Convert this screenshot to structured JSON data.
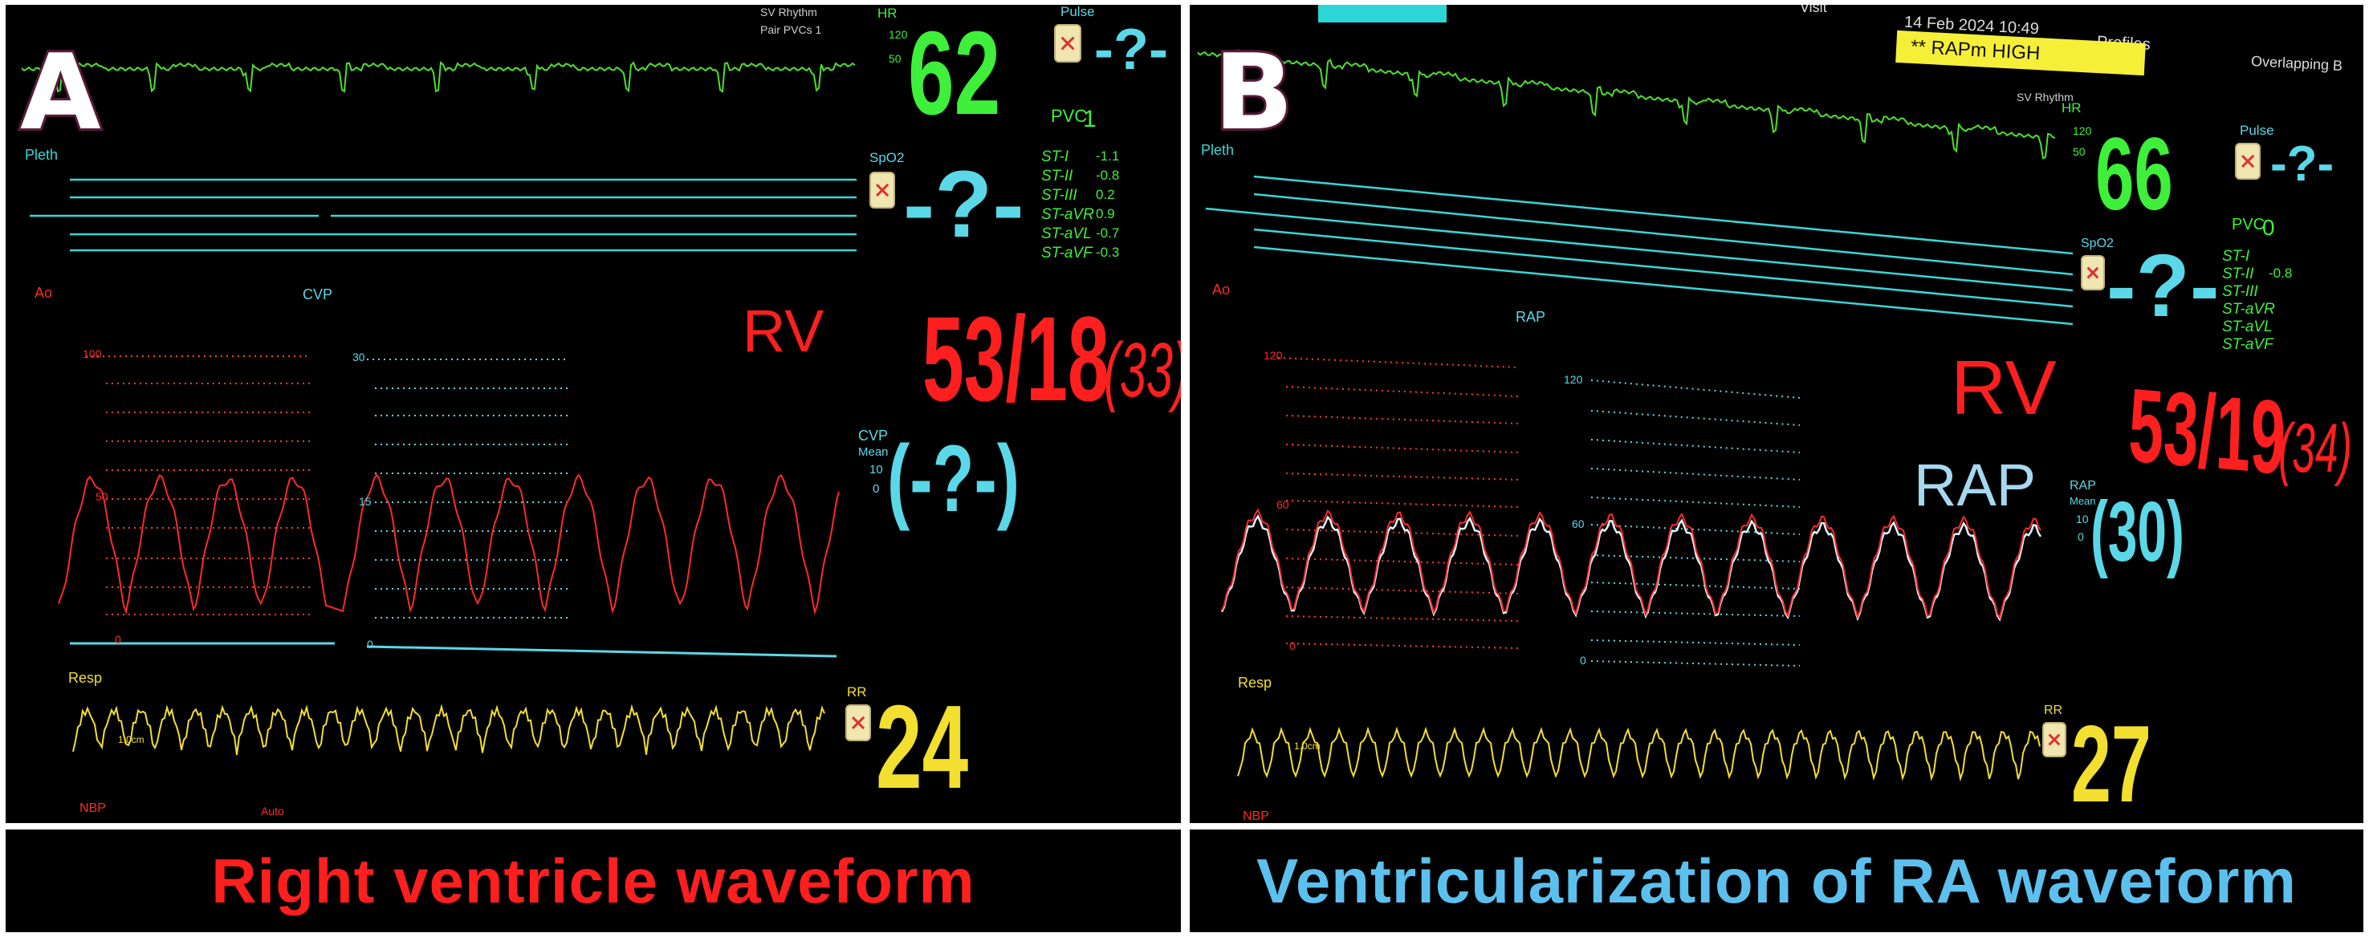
{
  "panels": [
    {
      "letter": "A",
      "caption": "Right ventricle waveform",
      "caption_color": "#ff1f1f",
      "monitor": {
        "rhythm_labels": [
          "SV Rhythm",
          "Pair PVCs 1"
        ],
        "hr": {
          "label": "HR",
          "limits": [
            "120",
            "50"
          ],
          "value": "62"
        },
        "pulse": {
          "label": "Pulse",
          "value": "-?-"
        },
        "pvc": {
          "label": "PVC",
          "value": "1"
        },
        "st": [
          {
            "label": "ST-I",
            "value": "-1.1"
          },
          {
            "label": "ST-II",
            "value": "-0.8"
          },
          {
            "label": "ST-III",
            "value": "0.2"
          },
          {
            "label": "ST-aVR",
            "value": "0.9"
          },
          {
            "label": "ST-aVL",
            "value": "-0.7"
          },
          {
            "label": "ST-aVF",
            "value": "-0.3"
          }
        ],
        "pleth_label": "Pleth",
        "spo2": {
          "label": "SpO2",
          "value": "-?-"
        },
        "ao_label": "Ao",
        "cvp_label": "CVP",
        "rv_label": "RV",
        "pressure": {
          "value": "53/18",
          "mean": "(33)"
        },
        "scale_left": [
          "100",
          "50",
          "0"
        ],
        "scale_right": [
          "30",
          "15",
          "0"
        ],
        "cvp_block": {
          "label": "CVP",
          "sub": "Mean",
          "limits": [
            "10",
            "0"
          ],
          "value": "(-?-)"
        },
        "resp_label": "Resp",
        "resp_marker": "1.0cm",
        "rr": {
          "label": "RR",
          "value": "24"
        },
        "nbp_label": "NBP",
        "auto_label": "Auto"
      }
    },
    {
      "letter": "B",
      "caption": "Ventricularization of RA waveform",
      "caption_color": "#5cc0ee",
      "monitor": {
        "header": {
          "user": "Visit",
          "datetime": "14 Feb 2024 10:49",
          "profiles": "Profiles",
          "overlapping": "Overlapping B"
        },
        "alarm": "** RAPm HIGH",
        "rhythm_label": "SV Rhythm",
        "hr": {
          "label": "HR",
          "limits": [
            "120",
            "50"
          ],
          "value": "66"
        },
        "pulse": {
          "label": "Pulse",
          "value": "-?-"
        },
        "pvc": {
          "label": "PVC",
          "value": "0"
        },
        "st": [
          {
            "label": "ST-I",
            "value": ""
          },
          {
            "label": "ST-II",
            "value": "-0.8"
          },
          {
            "label": "ST-III",
            "value": ""
          },
          {
            "label": "ST-aVR",
            "value": ""
          },
          {
            "label": "ST-aVL",
            "value": ""
          },
          {
            "label": "ST-aVF",
            "value": ""
          }
        ],
        "pleth_label": "Pleth",
        "spo2": {
          "label": "SpO2",
          "value": "-?-"
        },
        "ao_label": "Ao",
        "rap_label_top": "RAP",
        "rv_label": "RV",
        "rap_label": "RAP",
        "pressure": {
          "value": "53/19",
          "mean": "(34)"
        },
        "scale_left": [
          "120",
          "60",
          "0"
        ],
        "scale_right": [
          "120",
          "60",
          "0"
        ],
        "rap_block": {
          "label": "RAP",
          "sub": "Mean",
          "limits": [
            "10",
            "0"
          ],
          "value": "(30)"
        },
        "resp_label": "Resp",
        "resp_marker": "1.0cm",
        "rr": {
          "label": "RR",
          "value": "27"
        },
        "nbp_label": "NBP"
      }
    }
  ],
  "colors": {
    "ecg": "#4ee02a",
    "pleth": "#38d6d6",
    "art": "#ff2a2a",
    "cvp": "#5ad8e8",
    "resp": "#f2df30",
    "hr_number": "#3ef03a",
    "white_label": "#9fe0ff"
  }
}
